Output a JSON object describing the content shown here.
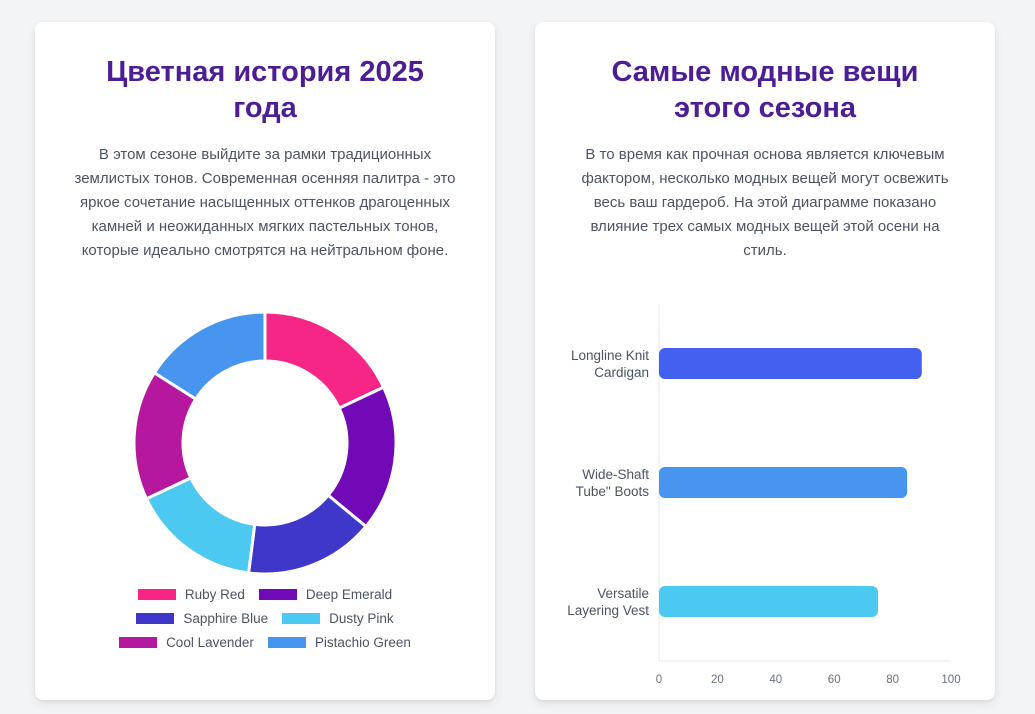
{
  "left_card": {
    "title": "Цветная история 2025 года",
    "text": "В этом сезоне выйдите за рамки традиционных землистых тонов. Современная осенняя палитра - это яркое сочетание насыщенных оттенков драгоценных камней и неожиданных мягких пастельных тонов, которые идеально смотрятся на нейтральном фоне."
  },
  "right_card": {
    "title": "Самые модные вещи этого сезона",
    "text": "В то время как прочная основа является ключевым фактором, несколько модных вещей могут освежить весь ваш гардероб. На этой диаграмме показано влияние трех самых модных вещей этой осени на стиль."
  },
  "chart_data": [
    {
      "type": "pie",
      "donut": true,
      "categories": [
        "Ruby Red",
        "Deep Emerald",
        "Sapphire Blue",
        "Dusty Pink",
        "Cool Lavender",
        "Pistachio Green"
      ],
      "values": [
        18,
        18,
        16,
        16,
        16,
        16
      ],
      "colors": [
        "#f72585",
        "#7209b7",
        "#3f37c9",
        "#4cc9f0",
        "#b5179e",
        "#4895ef"
      ],
      "legend_placement": "bottom"
    },
    {
      "type": "bar",
      "orientation": "horizontal",
      "categories": [
        [
          "Longline Knit",
          "Cardigan"
        ],
        [
          "Wide-Shaft",
          "Tube\" Boots"
        ],
        [
          "Versatile",
          "Layering Vest"
        ]
      ],
      "values": [
        90,
        85,
        75
      ],
      "colors": [
        "#4361ee",
        "#4895ef",
        "#4cc9f0"
      ],
      "xlim": [
        0,
        100
      ],
      "xticks": [
        "0",
        "20",
        "40",
        "60",
        "80",
        "100"
      ],
      "grid": false
    }
  ]
}
